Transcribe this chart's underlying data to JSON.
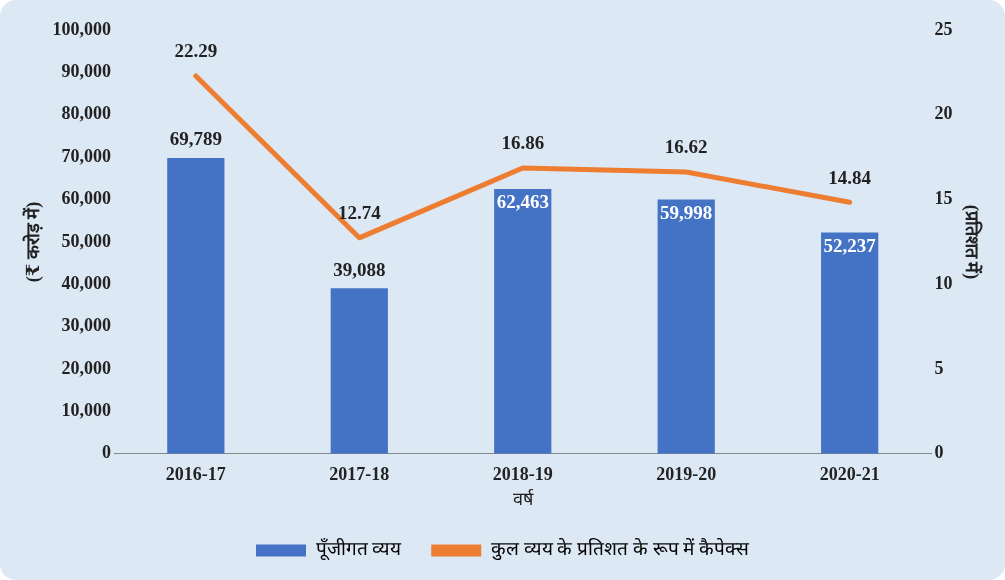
{
  "chart_data": {
    "type": "bar",
    "categories": [
      "2016-17",
      "2017-18",
      "2018-19",
      "2019-20",
      "2020-21"
    ],
    "xlabel": "वर्ष",
    "ylabel": "(₹ करोड़ में)",
    "y2label": "(प्रतिशत में)",
    "series": [
      {
        "name": "पूँजीगत व्यय",
        "color": "#4472c4",
        "values": [
          69789,
          39088,
          62463,
          59998,
          52237
        ],
        "value_labels": [
          "69,789",
          "39,088",
          "62,463",
          "59,998",
          "52,237"
        ]
      },
      {
        "name": "कुल व्यय के प्रतिशत के रूप में कैपेक्स",
        "type": "line",
        "axis": "y2",
        "color": "#ed7d31",
        "values": [
          22.29,
          12.74,
          16.86,
          16.62,
          14.84
        ],
        "value_labels": [
          "22.29",
          "12.74",
          "16.86",
          "16.62",
          "14.84"
        ]
      }
    ],
    "ylim": [
      0,
      100000
    ],
    "yticks": [
      {
        "value": 0,
        "label": "0"
      },
      {
        "value": 10000,
        "label": "10,000"
      },
      {
        "value": 20000,
        "label": "20,000"
      },
      {
        "value": 30000,
        "label": "30,000"
      },
      {
        "value": 40000,
        "label": "40,000"
      },
      {
        "value": 50000,
        "label": "50,000"
      },
      {
        "value": 60000,
        "label": "60,000"
      },
      {
        "value": 70000,
        "label": "70,000"
      },
      {
        "value": 80000,
        "label": "80,000"
      },
      {
        "value": 90000,
        "label": "90,000"
      },
      {
        "value": 100000,
        "label": "100,000"
      }
    ],
    "y2lim": [
      0,
      25
    ],
    "y2ticks": [
      0,
      5,
      10,
      15,
      20,
      25
    ],
    "grid": false,
    "legend": "bottom",
    "marker": "none",
    "line_style": "solid"
  }
}
